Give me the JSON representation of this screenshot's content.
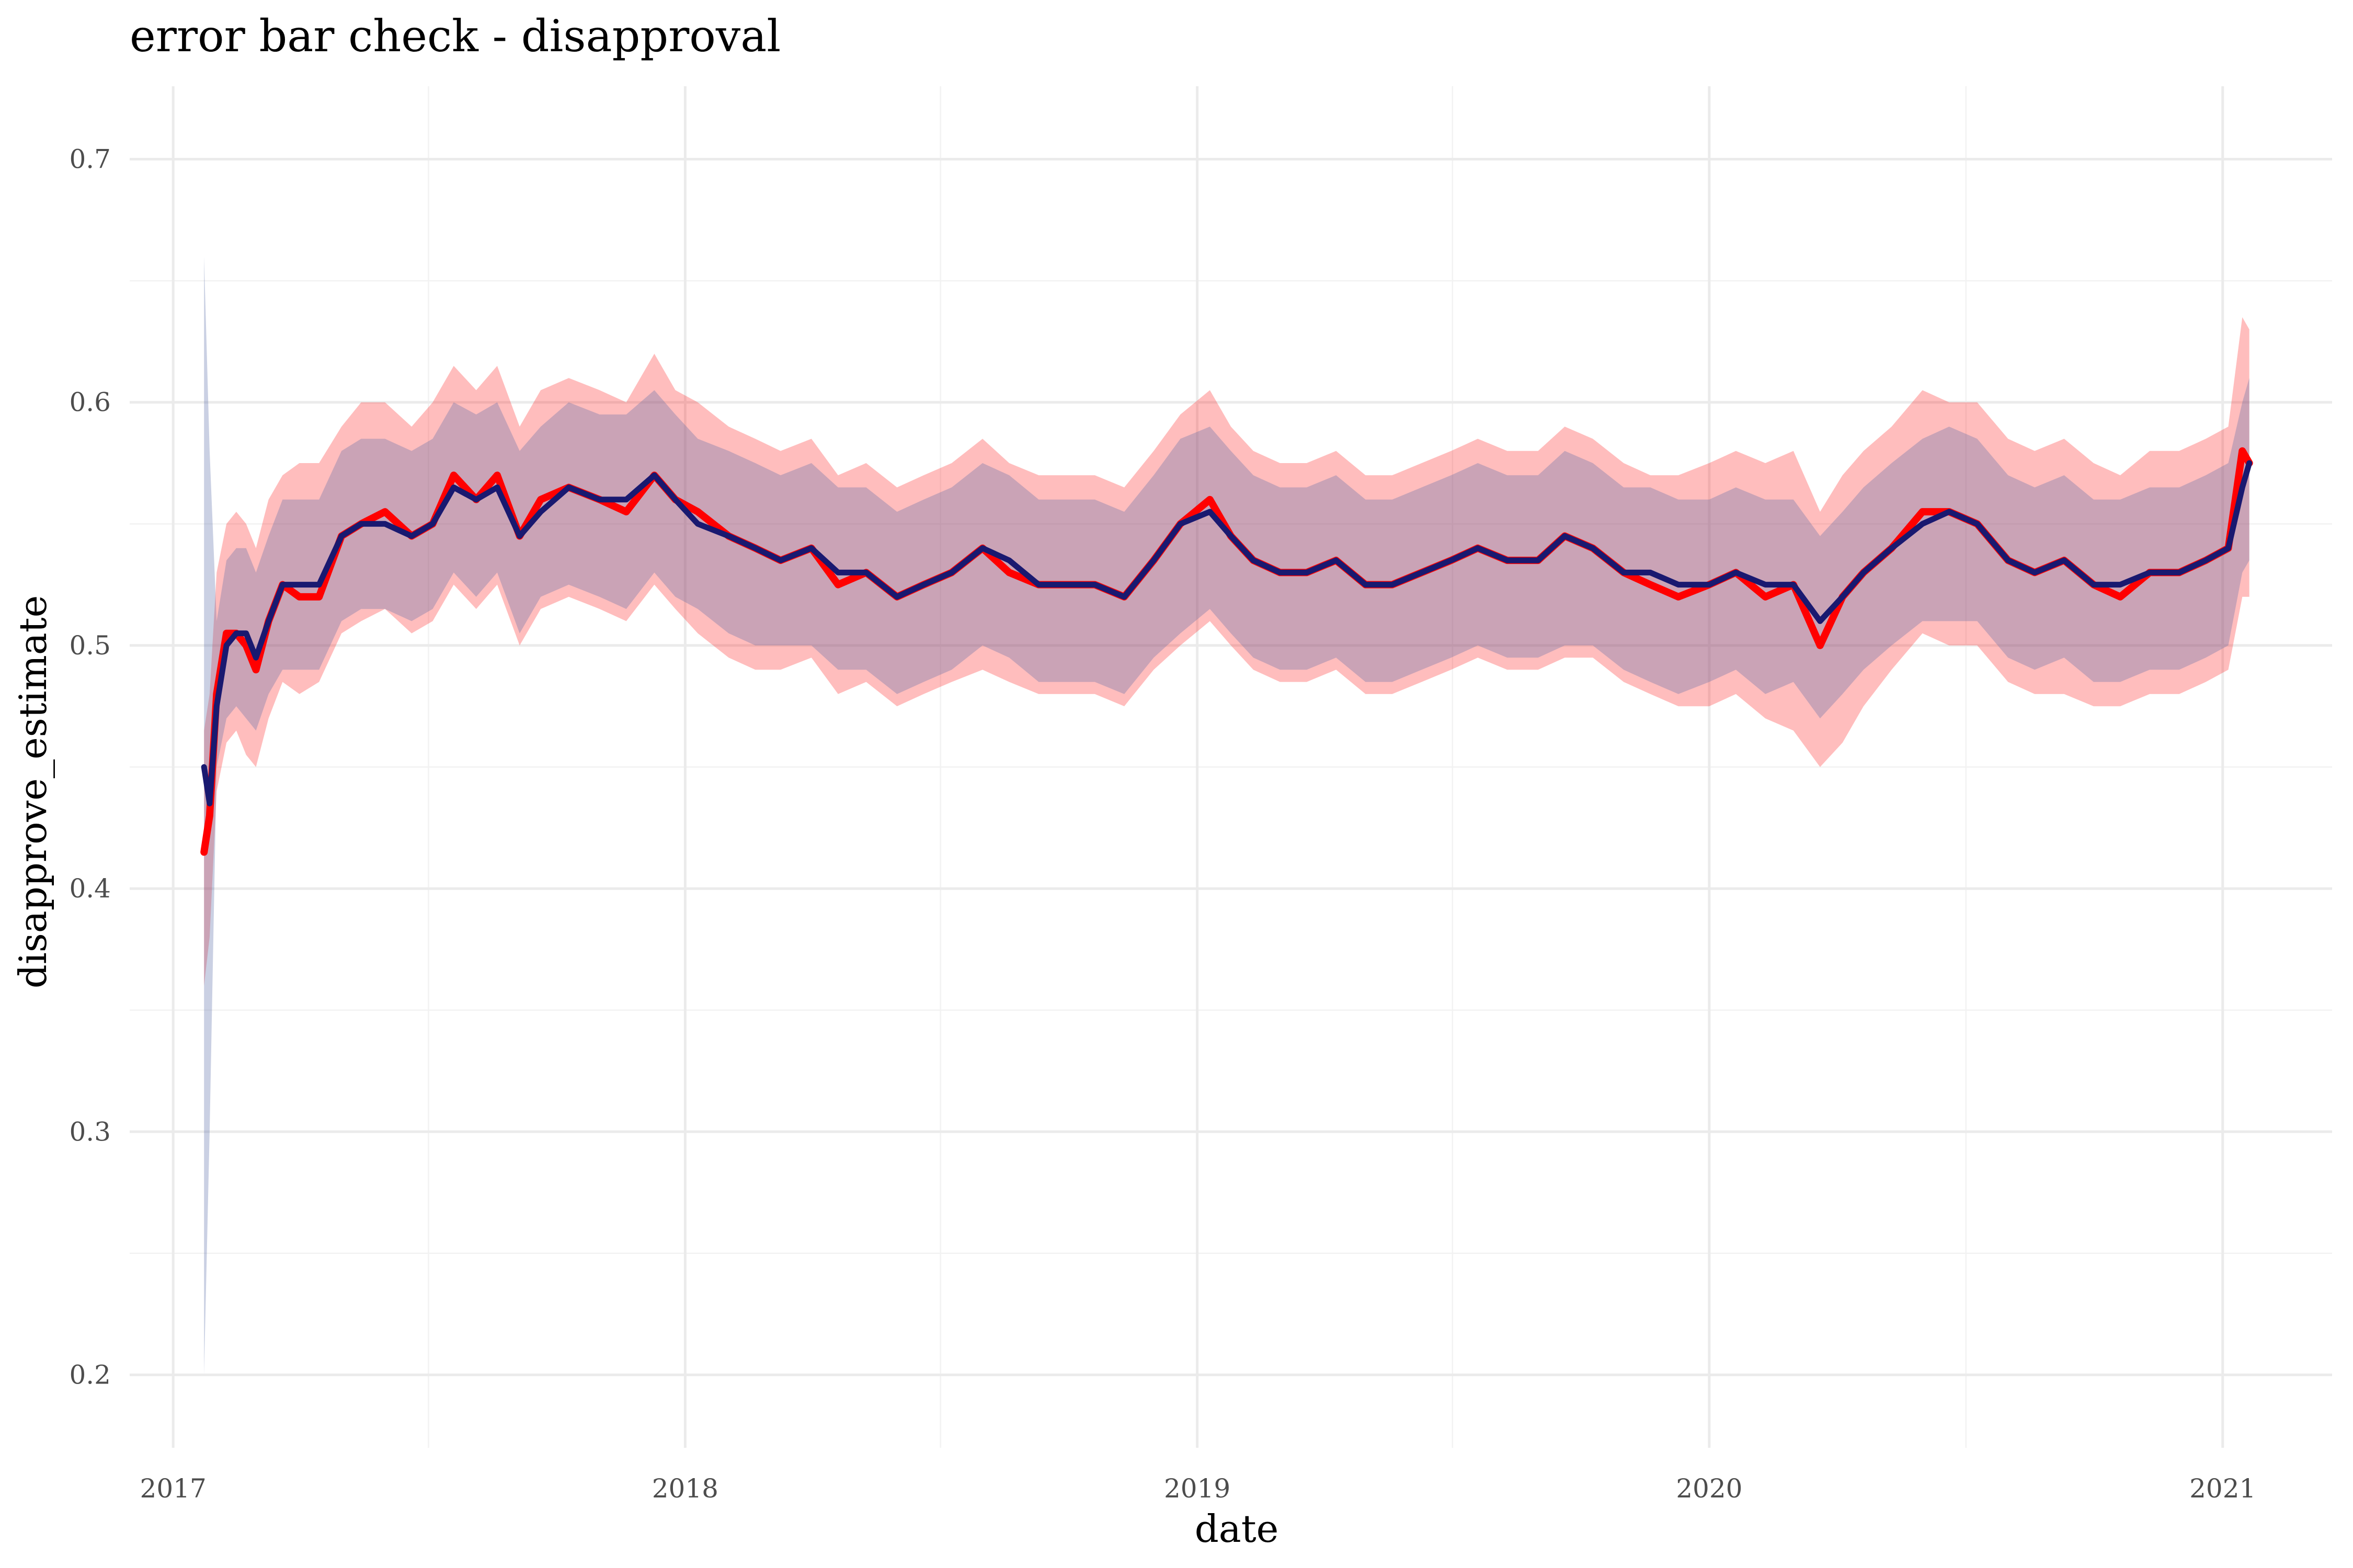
{
  "chart_data": {
    "type": "line",
    "title": "error bar check - disapproval",
    "xlabel": "date",
    "ylabel": "disapprove_estimate",
    "x_ticks": [
      "2017",
      "2018",
      "2019",
      "2020",
      "2021"
    ],
    "y_ticks": [
      "0.2",
      "0.3",
      "0.4",
      "0.5",
      "0.6",
      "0.7"
    ],
    "xlim": [
      "2016-12-01",
      "2021-03-20"
    ],
    "ylim": [
      0.17,
      0.73
    ],
    "grid": true,
    "legend": "none",
    "colors": {
      "red_line": "#ff0000",
      "red_band": "#ff0000",
      "navy_line": "#191970",
      "navy_band": "#5a6ea8"
    },
    "series": [
      {
        "x": [
          "2017-01-23",
          "2017-01-27",
          "2017-02-01",
          "2017-02-08",
          "2017-02-15",
          "2017-02-22",
          "2017-03-01",
          "2017-03-10",
          "2017-03-20",
          "2017-04-01",
          "2017-04-15",
          "2017-05-01",
          "2017-05-15",
          "2017-06-01",
          "2017-06-20",
          "2017-07-05",
          "2017-07-20",
          "2017-08-05",
          "2017-08-20",
          "2017-09-05",
          "2017-09-20",
          "2017-10-10",
          "2017-11-01",
          "2017-11-20",
          "2017-12-10",
          "2017-12-25",
          "2018-01-10",
          "2018-02-01",
          "2018-02-20",
          "2018-03-10",
          "2018-04-01",
          "2018-04-20",
          "2018-05-10",
          "2018-06-01",
          "2018-06-20",
          "2018-07-10",
          "2018-08-01",
          "2018-08-20",
          "2018-09-10",
          "2018-10-01",
          "2018-10-20",
          "2018-11-10",
          "2018-12-01",
          "2018-12-20",
          "2019-01-10",
          "2019-01-25",
          "2019-02-10",
          "2019-03-01",
          "2019-03-20",
          "2019-04-10",
          "2019-05-01",
          "2019-05-20",
          "2019-06-10",
          "2019-07-01",
          "2019-07-20",
          "2019-08-10",
          "2019-09-01",
          "2019-09-20",
          "2019-10-10",
          "2019-11-01",
          "2019-11-20",
          "2019-12-10",
          "2020-01-01",
          "2020-01-20",
          "2020-02-10",
          "2020-03-01",
          "2020-03-20",
          "2020-04-05",
          "2020-04-20",
          "2020-05-10",
          "2020-06-01",
          "2020-06-20",
          "2020-07-10",
          "2020-08-01",
          "2020-08-20",
          "2020-09-10",
          "2020-10-01",
          "2020-10-20",
          "2020-11-10",
          "2020-12-01",
          "2020-12-20",
          "2021-01-05",
          "2021-01-15",
          "2021-01-20"
        ],
        "y": [
          0.415,
          0.43,
          0.48,
          0.505,
          0.505,
          0.5,
          0.49,
          0.51,
          0.525,
          0.52,
          0.52,
          0.545,
          0.55,
          0.555,
          0.545,
          0.55,
          0.57,
          0.56,
          0.57,
          0.545,
          0.56,
          0.565,
          0.56,
          0.555,
          0.57,
          0.56,
          0.555,
          0.545,
          0.54,
          0.535,
          0.54,
          0.525,
          0.53,
          0.52,
          0.525,
          0.53,
          0.54,
          0.53,
          0.525,
          0.525,
          0.525,
          0.52,
          0.535,
          0.55,
          0.56,
          0.545,
          0.535,
          0.53,
          0.53,
          0.535,
          0.525,
          0.525,
          0.53,
          0.535,
          0.54,
          0.535,
          0.535,
          0.545,
          0.54,
          0.53,
          0.525,
          0.52,
          0.525,
          0.53,
          0.52,
          0.525,
          0.5,
          0.52,
          0.53,
          0.54,
          0.555,
          0.555,
          0.55,
          0.535,
          0.53,
          0.535,
          0.525,
          0.52,
          0.53,
          0.53,
          0.535,
          0.54,
          0.58,
          0.575
        ],
        "lower": [
          0.36,
          0.38,
          0.44,
          0.46,
          0.465,
          0.455,
          0.45,
          0.47,
          0.485,
          0.48,
          0.485,
          0.505,
          0.51,
          0.515,
          0.505,
          0.51,
          0.525,
          0.515,
          0.525,
          0.5,
          0.515,
          0.52,
          0.515,
          0.51,
          0.525,
          0.515,
          0.505,
          0.495,
          0.49,
          0.49,
          0.495,
          0.48,
          0.485,
          0.475,
          0.48,
          0.485,
          0.49,
          0.485,
          0.48,
          0.48,
          0.48,
          0.475,
          0.49,
          0.5,
          0.51,
          0.5,
          0.49,
          0.485,
          0.485,
          0.49,
          0.48,
          0.48,
          0.485,
          0.49,
          0.495,
          0.49,
          0.49,
          0.495,
          0.495,
          0.485,
          0.48,
          0.475,
          0.475,
          0.48,
          0.47,
          0.465,
          0.45,
          0.46,
          0.475,
          0.49,
          0.505,
          0.5,
          0.5,
          0.485,
          0.48,
          0.48,
          0.475,
          0.475,
          0.48,
          0.48,
          0.485,
          0.49,
          0.52,
          0.52
        ],
        "upper": [
          0.465,
          0.48,
          0.53,
          0.55,
          0.555,
          0.55,
          0.54,
          0.56,
          0.57,
          0.575,
          0.575,
          0.59,
          0.6,
          0.6,
          0.59,
          0.6,
          0.615,
          0.605,
          0.615,
          0.59,
          0.605,
          0.61,
          0.605,
          0.6,
          0.62,
          0.605,
          0.6,
          0.59,
          0.585,
          0.58,
          0.585,
          0.57,
          0.575,
          0.565,
          0.57,
          0.575,
          0.585,
          0.575,
          0.57,
          0.57,
          0.57,
          0.565,
          0.58,
          0.595,
          0.605,
          0.59,
          0.58,
          0.575,
          0.575,
          0.58,
          0.57,
          0.57,
          0.575,
          0.58,
          0.585,
          0.58,
          0.58,
          0.59,
          0.585,
          0.575,
          0.57,
          0.57,
          0.575,
          0.58,
          0.575,
          0.58,
          0.555,
          0.57,
          0.58,
          0.59,
          0.605,
          0.6,
          0.6,
          0.585,
          0.58,
          0.585,
          0.575,
          0.57,
          0.58,
          0.58,
          0.585,
          0.59,
          0.635,
          0.63
        ]
      },
      {
        "x": [
          "2017-01-23",
          "2017-01-27",
          "2017-02-01",
          "2017-02-08",
          "2017-02-15",
          "2017-02-22",
          "2017-03-01",
          "2017-03-10",
          "2017-03-20",
          "2017-04-01",
          "2017-04-15",
          "2017-05-01",
          "2017-05-15",
          "2017-06-01",
          "2017-06-20",
          "2017-07-05",
          "2017-07-20",
          "2017-08-05",
          "2017-08-20",
          "2017-09-05",
          "2017-09-20",
          "2017-10-10",
          "2017-11-01",
          "2017-11-20",
          "2017-12-10",
          "2017-12-25",
          "2018-01-10",
          "2018-02-01",
          "2018-02-20",
          "2018-03-10",
          "2018-04-01",
          "2018-04-20",
          "2018-05-10",
          "2018-06-01",
          "2018-06-20",
          "2018-07-10",
          "2018-08-01",
          "2018-08-20",
          "2018-09-10",
          "2018-10-01",
          "2018-10-20",
          "2018-11-10",
          "2018-12-01",
          "2018-12-20",
          "2019-01-10",
          "2019-01-25",
          "2019-02-10",
          "2019-03-01",
          "2019-03-20",
          "2019-04-10",
          "2019-05-01",
          "2019-05-20",
          "2019-06-10",
          "2019-07-01",
          "2019-07-20",
          "2019-08-10",
          "2019-09-01",
          "2019-09-20",
          "2019-10-10",
          "2019-11-01",
          "2019-11-20",
          "2019-12-10",
          "2020-01-01",
          "2020-01-20",
          "2020-02-10",
          "2020-03-01",
          "2020-03-20",
          "2020-04-05",
          "2020-04-20",
          "2020-05-10",
          "2020-06-01",
          "2020-06-20",
          "2020-07-10",
          "2020-08-01",
          "2020-08-20",
          "2020-09-10",
          "2020-10-01",
          "2020-10-20",
          "2020-11-10",
          "2020-12-01",
          "2020-12-20",
          "2021-01-05",
          "2021-01-15",
          "2021-01-20"
        ],
        "y": [
          0.45,
          0.435,
          0.475,
          0.5,
          0.505,
          0.505,
          0.495,
          0.51,
          0.525,
          0.525,
          0.525,
          0.545,
          0.55,
          0.55,
          0.545,
          0.55,
          0.565,
          0.56,
          0.565,
          0.545,
          0.555,
          0.565,
          0.56,
          0.56,
          0.57,
          0.56,
          0.55,
          0.545,
          0.54,
          0.535,
          0.54,
          0.53,
          0.53,
          0.52,
          0.525,
          0.53,
          0.54,
          0.535,
          0.525,
          0.525,
          0.525,
          0.52,
          0.535,
          0.55,
          0.555,
          0.545,
          0.535,
          0.53,
          0.53,
          0.535,
          0.525,
          0.525,
          0.53,
          0.535,
          0.54,
          0.535,
          0.535,
          0.545,
          0.54,
          0.53,
          0.53,
          0.525,
          0.525,
          0.53,
          0.525,
          0.525,
          0.51,
          0.52,
          0.53,
          0.54,
          0.55,
          0.555,
          0.55,
          0.535,
          0.53,
          0.535,
          0.525,
          0.525,
          0.53,
          0.53,
          0.535,
          0.54,
          0.565,
          0.575
        ],
        "lower": [
          0.2,
          0.3,
          0.45,
          0.47,
          0.475,
          0.47,
          0.465,
          0.48,
          0.49,
          0.49,
          0.49,
          0.51,
          0.515,
          0.515,
          0.51,
          0.515,
          0.53,
          0.52,
          0.53,
          0.505,
          0.52,
          0.525,
          0.52,
          0.515,
          0.53,
          0.52,
          0.515,
          0.505,
          0.5,
          0.5,
          0.5,
          0.49,
          0.49,
          0.48,
          0.485,
          0.49,
          0.5,
          0.495,
          0.485,
          0.485,
          0.485,
          0.48,
          0.495,
          0.505,
          0.515,
          0.505,
          0.495,
          0.49,
          0.49,
          0.495,
          0.485,
          0.485,
          0.49,
          0.495,
          0.5,
          0.495,
          0.495,
          0.5,
          0.5,
          0.49,
          0.485,
          0.48,
          0.485,
          0.49,
          0.48,
          0.485,
          0.47,
          0.48,
          0.49,
          0.5,
          0.51,
          0.51,
          0.51,
          0.495,
          0.49,
          0.495,
          0.485,
          0.485,
          0.49,
          0.49,
          0.495,
          0.5,
          0.53,
          0.535
        ],
        "upper": [
          0.66,
          0.58,
          0.51,
          0.535,
          0.54,
          0.54,
          0.53,
          0.545,
          0.56,
          0.56,
          0.56,
          0.58,
          0.585,
          0.585,
          0.58,
          0.585,
          0.6,
          0.595,
          0.6,
          0.58,
          0.59,
          0.6,
          0.595,
          0.595,
          0.605,
          0.595,
          0.585,
          0.58,
          0.575,
          0.57,
          0.575,
          0.565,
          0.565,
          0.555,
          0.56,
          0.565,
          0.575,
          0.57,
          0.56,
          0.56,
          0.56,
          0.555,
          0.57,
          0.585,
          0.59,
          0.58,
          0.57,
          0.565,
          0.565,
          0.57,
          0.56,
          0.56,
          0.565,
          0.57,
          0.575,
          0.57,
          0.57,
          0.58,
          0.575,
          0.565,
          0.565,
          0.56,
          0.56,
          0.565,
          0.56,
          0.56,
          0.545,
          0.555,
          0.565,
          0.575,
          0.585,
          0.59,
          0.585,
          0.57,
          0.565,
          0.57,
          0.56,
          0.56,
          0.565,
          0.565,
          0.57,
          0.575,
          0.6,
          0.61
        ]
      }
    ]
  }
}
